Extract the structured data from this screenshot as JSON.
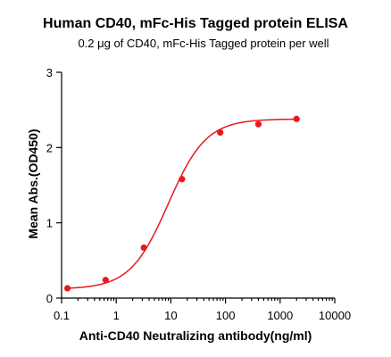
{
  "chart_data": {
    "type": "scatter",
    "title": "Human CD40, mFc-His Tagged protein ELISA",
    "subtitle": "0.2 μg of CD40, mFc-His Tagged protein per well",
    "xlabel": "Anti-CD40 Neutralizing antibody(ng/ml)",
    "ylabel": "Mean Abs.(OD450)",
    "x_scale": "log",
    "xlim": [
      0.1,
      10000
    ],
    "ylim": [
      0,
      3
    ],
    "x_ticks": [
      0.1,
      1,
      10,
      100,
      1000,
      10000
    ],
    "x_tick_labels": [
      "0.1",
      "1",
      "10",
      "100",
      "1000",
      "10000"
    ],
    "y_ticks": [
      0,
      1,
      2,
      3
    ],
    "y_tick_labels": [
      "0",
      "1",
      "2",
      "3"
    ],
    "grid": false,
    "series": [
      {
        "color": "#e8191c",
        "x": [
          0.128,
          0.64,
          3.2,
          16,
          80,
          400,
          2000
        ],
        "y": [
          0.13,
          0.24,
          0.67,
          1.58,
          2.2,
          2.31,
          2.38
        ],
        "fit": "four-parameter logistic"
      }
    ]
  }
}
